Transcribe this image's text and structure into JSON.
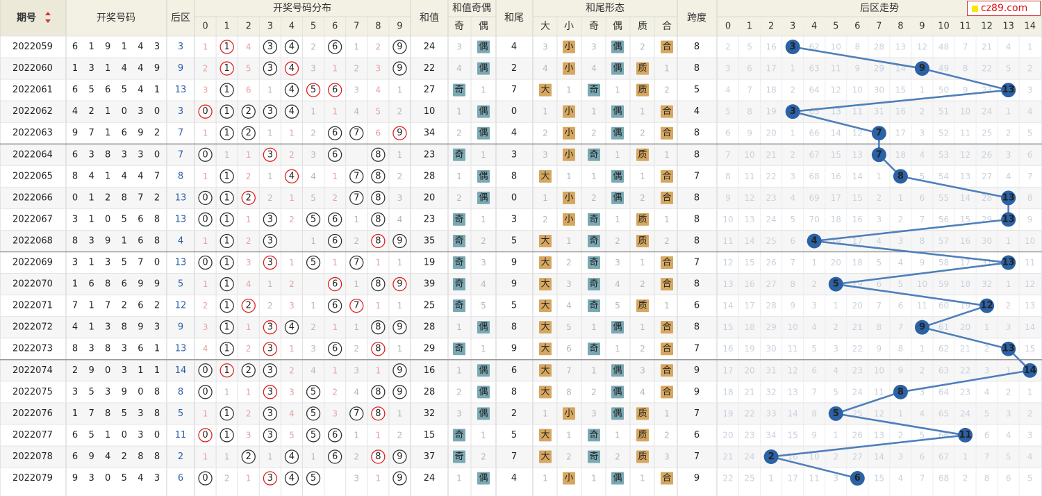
{
  "site_logo": "cz89.com",
  "headers": {
    "issue": "期号",
    "numbers": "开奖号码",
    "back": "后区",
    "distribution": "开奖号码分布",
    "digits": [
      "0",
      "1",
      "2",
      "3",
      "4",
      "5",
      "6",
      "7",
      "8",
      "9"
    ],
    "sum": "和值",
    "sum_parity": "和值奇偶",
    "odd": "奇",
    "even": "偶",
    "tail": "和尾",
    "tail_shape": "和尾形态",
    "big": "大",
    "small": "小",
    "prime": "质",
    "composite": "合",
    "span": "跨度",
    "back_trend": "后区走势",
    "trend_digits": [
      "0",
      "1",
      "2",
      "3",
      "4",
      "5",
      "6",
      "7",
      "8",
      "9",
      "10",
      "11",
      "12",
      "13",
      "14"
    ]
  },
  "chart_data": {
    "type": "table",
    "rows": [
      {
        "issue": "2022059",
        "nums": [
          6,
          1,
          9,
          1,
          4,
          3
        ],
        "back": 3,
        "sum": 24,
        "tail": 4,
        "span": 8
      },
      {
        "issue": "2022060",
        "nums": [
          1,
          3,
          1,
          4,
          4,
          9
        ],
        "back": 9,
        "sum": 22,
        "tail": 2,
        "span": 8
      },
      {
        "issue": "2022061",
        "nums": [
          6,
          5,
          6,
          5,
          4,
          1
        ],
        "back": 13,
        "sum": 27,
        "tail": 7,
        "span": 5
      },
      {
        "issue": "2022062",
        "nums": [
          4,
          2,
          1,
          0,
          3,
          0
        ],
        "back": 3,
        "sum": 10,
        "tail": 0,
        "span": 4
      },
      {
        "issue": "2022063",
        "nums": [
          9,
          7,
          1,
          6,
          9,
          2
        ],
        "back": 7,
        "sum": 34,
        "tail": 4,
        "span": 8
      },
      {
        "issue": "2022064",
        "nums": [
          6,
          3,
          8,
          3,
          3,
          0
        ],
        "back": 7,
        "sum": 23,
        "tail": 3,
        "span": 8
      },
      {
        "issue": "2022065",
        "nums": [
          8,
          4,
          1,
          4,
          4,
          7
        ],
        "back": 8,
        "sum": 28,
        "tail": 8,
        "span": 7
      },
      {
        "issue": "2022066",
        "nums": [
          0,
          1,
          2,
          8,
          7,
          2
        ],
        "back": 13,
        "sum": 20,
        "tail": 0,
        "span": 8
      },
      {
        "issue": "2022067",
        "nums": [
          3,
          1,
          0,
          5,
          6,
          8
        ],
        "back": 13,
        "sum": 23,
        "tail": 3,
        "span": 8
      },
      {
        "issue": "2022068",
        "nums": [
          8,
          3,
          9,
          1,
          6,
          8
        ],
        "back": 4,
        "sum": 35,
        "tail": 5,
        "span": 8
      },
      {
        "issue": "2022069",
        "nums": [
          3,
          1,
          3,
          5,
          7,
          0
        ],
        "back": 13,
        "sum": 19,
        "tail": 9,
        "span": 7
      },
      {
        "issue": "2022070",
        "nums": [
          1,
          6,
          8,
          6,
          9,
          9
        ],
        "back": 5,
        "sum": 39,
        "tail": 9,
        "span": 8
      },
      {
        "issue": "2022071",
        "nums": [
          7,
          1,
          7,
          2,
          6,
          2
        ],
        "back": 12,
        "sum": 25,
        "tail": 5,
        "span": 6
      },
      {
        "issue": "2022072",
        "nums": [
          4,
          1,
          3,
          8,
          9,
          3
        ],
        "back": 9,
        "sum": 28,
        "tail": 8,
        "span": 8
      },
      {
        "issue": "2022073",
        "nums": [
          8,
          3,
          8,
          3,
          6,
          1
        ],
        "back": 13,
        "sum": 29,
        "tail": 9,
        "span": 7
      },
      {
        "issue": "2022074",
        "nums": [
          2,
          9,
          0,
          3,
          1,
          1
        ],
        "back": 14,
        "sum": 16,
        "tail": 6,
        "span": 9
      },
      {
        "issue": "2022075",
        "nums": [
          3,
          5,
          3,
          9,
          0,
          8
        ],
        "back": 8,
        "sum": 28,
        "tail": 8,
        "span": 9
      },
      {
        "issue": "2022076",
        "nums": [
          1,
          7,
          8,
          5,
          3,
          8
        ],
        "back": 5,
        "sum": 32,
        "tail": 2,
        "span": 7
      },
      {
        "issue": "2022077",
        "nums": [
          6,
          5,
          1,
          0,
          3,
          0
        ],
        "back": 11,
        "sum": 15,
        "tail": 5,
        "span": 6
      },
      {
        "issue": "2022078",
        "nums": [
          6,
          9,
          4,
          2,
          8,
          8
        ],
        "back": 2,
        "sum": 37,
        "tail": 7,
        "span": 7
      },
      {
        "issue": "2022079",
        "nums": [
          9,
          3,
          0,
          5,
          4,
          3
        ],
        "back": 6,
        "sum": 24,
        "tail": 4,
        "span": 9
      }
    ],
    "distribution_miss": [
      [
        1,
        null,
        4,
        null,
        null,
        2,
        null,
        1,
        2,
        null
      ],
      [
        2,
        null,
        5,
        null,
        null,
        3,
        1,
        2,
        3,
        null
      ],
      [
        3,
        null,
        6,
        1,
        null,
        null,
        null,
        3,
        4,
        1
      ],
      [
        null,
        null,
        null,
        null,
        null,
        1,
        1,
        4,
        5,
        2
      ],
      [
        1,
        null,
        null,
        1,
        1,
        2,
        null,
        null,
        6,
        null
      ],
      [
        null,
        1,
        1,
        null,
        2,
        3,
        null,
        null,
        null,
        1
      ],
      [
        1,
        null,
        2,
        1,
        null,
        4,
        1,
        null,
        null,
        2
      ],
      [
        null,
        null,
        null,
        2,
        1,
        5,
        2,
        null,
        null,
        3
      ],
      [
        null,
        null,
        1,
        null,
        2,
        null,
        null,
        1,
        null,
        4
      ],
      [
        1,
        null,
        2,
        null,
        null,
        1,
        null,
        2,
        null,
        null
      ],
      [
        null,
        null,
        3,
        null,
        1,
        null,
        1,
        null,
        1,
        1
      ],
      [
        1,
        null,
        4,
        1,
        2,
        null,
        null,
        1,
        null,
        null
      ],
      [
        2,
        null,
        null,
        2,
        3,
        1,
        null,
        null,
        1,
        1
      ],
      [
        3,
        null,
        1,
        null,
        null,
        2,
        1,
        1,
        null,
        null
      ],
      [
        4,
        null,
        2,
        null,
        1,
        3,
        null,
        2,
        null,
        1
      ],
      [
        null,
        null,
        null,
        null,
        2,
        4,
        1,
        3,
        1,
        null
      ],
      [
        null,
        1,
        1,
        null,
        3,
        null,
        2,
        4,
        null,
        null
      ],
      [
        1,
        null,
        2,
        null,
        4,
        null,
        3,
        null,
        null,
        1
      ],
      [
        null,
        null,
        3,
        null,
        5,
        null,
        null,
        1,
        1,
        2
      ],
      [
        1,
        1,
        null,
        1,
        null,
        1,
        null,
        2,
        null,
        null
      ],
      [
        null,
        2,
        1,
        null,
        null,
        null,
        null,
        3,
        1,
        null
      ]
    ],
    "parity_miss": [
      3,
      4,
      1,
      1,
      2,
      1,
      1,
      2,
      1,
      2,
      3,
      4,
      5,
      1,
      1,
      1,
      2,
      3,
      1,
      2,
      1
    ],
    "bigsmall_miss": [
      3,
      4,
      1,
      1,
      2,
      3,
      1,
      1,
      2,
      1,
      2,
      3,
      4,
      5,
      6,
      7,
      8,
      1,
      1,
      2,
      1
    ],
    "oddeven_miss": [
      3,
      4,
      1,
      1,
      2,
      1,
      1,
      2,
      1,
      2,
      3,
      4,
      5,
      1,
      1,
      1,
      2,
      3,
      1,
      2,
      1
    ],
    "primecomp_miss": [
      2,
      1,
      2,
      1,
      2,
      1,
      1,
      2,
      1,
      2,
      1,
      2,
      1,
      1,
      2,
      3,
      4,
      1,
      2,
      3,
      1
    ],
    "trend_miss": [
      [
        2,
        5,
        16,
        null,
        62,
        10,
        8,
        28,
        13,
        12,
        48,
        7,
        21,
        4,
        1
      ],
      [
        3,
        6,
        17,
        1,
        63,
        11,
        9,
        29,
        14,
        null,
        49,
        8,
        22,
        5,
        2
      ],
      [
        4,
        7,
        18,
        2,
        64,
        12,
        10,
        30,
        15,
        1,
        50,
        9,
        23,
        null,
        3
      ],
      [
        5,
        8,
        19,
        null,
        65,
        13,
        11,
        31,
        16,
        2,
        51,
        10,
        24,
        1,
        4
      ],
      [
        6,
        9,
        20,
        1,
        66,
        14,
        12,
        null,
        17,
        3,
        52,
        11,
        25,
        2,
        5
      ],
      [
        7,
        10,
        21,
        2,
        67,
        15,
        13,
        null,
        18,
        4,
        53,
        12,
        26,
        3,
        6
      ],
      [
        8,
        11,
        22,
        3,
        68,
        16,
        14,
        1,
        null,
        5,
        54,
        13,
        27,
        4,
        7
      ],
      [
        9,
        12,
        23,
        4,
        69,
        17,
        15,
        2,
        1,
        6,
        55,
        14,
        28,
        null,
        8
      ],
      [
        10,
        13,
        24,
        5,
        70,
        18,
        16,
        3,
        2,
        7,
        56,
        15,
        29,
        null,
        9
      ],
      [
        11,
        14,
        25,
        6,
        null,
        19,
        17,
        4,
        3,
        8,
        57,
        16,
        30,
        1,
        10
      ],
      [
        12,
        15,
        26,
        7,
        1,
        20,
        18,
        5,
        4,
        9,
        58,
        17,
        31,
        null,
        11
      ],
      [
        13,
        16,
        27,
        8,
        2,
        null,
        19,
        6,
        5,
        10,
        59,
        18,
        32,
        1,
        12
      ],
      [
        14,
        17,
        28,
        9,
        3,
        1,
        20,
        7,
        6,
        11,
        60,
        19,
        null,
        2,
        13
      ],
      [
        15,
        18,
        29,
        10,
        4,
        2,
        21,
        8,
        7,
        null,
        61,
        20,
        1,
        3,
        14
      ],
      [
        16,
        19,
        30,
        11,
        5,
        3,
        22,
        9,
        8,
        1,
        62,
        21,
        2,
        null,
        15
      ],
      [
        17,
        20,
        31,
        12,
        6,
        4,
        23,
        10,
        9,
        2,
        63,
        22,
        3,
        1,
        null
      ],
      [
        18,
        21,
        32,
        13,
        7,
        5,
        24,
        11,
        null,
        3,
        64,
        23,
        4,
        2,
        1
      ],
      [
        19,
        22,
        33,
        14,
        8,
        null,
        25,
        12,
        1,
        4,
        65,
        24,
        5,
        3,
        2
      ],
      [
        20,
        23,
        34,
        15,
        9,
        1,
        26,
        13,
        2,
        5,
        66,
        null,
        6,
        4,
        3
      ],
      [
        21,
        24,
        null,
        16,
        10,
        2,
        27,
        14,
        3,
        6,
        67,
        1,
        7,
        5,
        4
      ],
      [
        22,
        25,
        1,
        17,
        11,
        3,
        null,
        15,
        4,
        7,
        68,
        2,
        8,
        6,
        5
      ]
    ],
    "colors": {
      "odd_box": "#7aa9b4",
      "even_box": "#7aa9b4",
      "big_box": "#d6a760",
      "small_box": "#d6a760",
      "prime_box": "#d6a760",
      "comp_box": "#d6a760",
      "trend_ball": "#2b62a5",
      "trend_line": "#4e7fba",
      "red_circle": "#e02020",
      "gray_circle": "#333333",
      "header_bg": "#f3f1e4",
      "row_alt": "#f6f6f6"
    }
  }
}
